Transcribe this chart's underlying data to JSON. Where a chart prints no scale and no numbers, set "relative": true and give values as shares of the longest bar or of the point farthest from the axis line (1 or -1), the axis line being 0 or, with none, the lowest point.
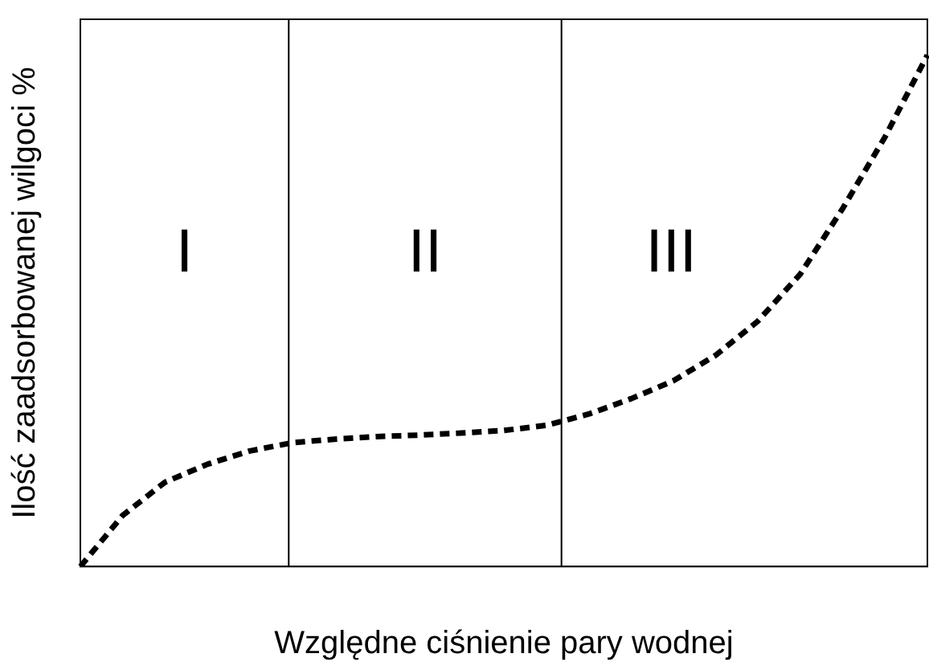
{
  "chart_data": {
    "type": "line",
    "relative": true,
    "xlabel": "Względne ciśnienie pary wodnej",
    "ylabel": "Ilość zaadsorbowanej wilgoci %",
    "categories": [
      null,
      null,
      null,
      null,
      null,
      null,
      null,
      null,
      null,
      null,
      null,
      null,
      null,
      null,
      null,
      null,
      null,
      null,
      null,
      null,
      null
    ],
    "series": [
      {
        "color": "#000000",
        "values": [
          0,
          0.1,
          0.165,
          0.2,
          0.226,
          0.242,
          0.249,
          0.254,
          0.257,
          0.261,
          0.266,
          0.276,
          0.298,
          0.328,
          0.363,
          0.413,
          0.48,
          0.572,
          0.7,
          0.84,
          1
        ]
      }
    ],
    "line_style": "dashed",
    "annotations": [
      "I",
      "II",
      "III"
    ]
  }
}
